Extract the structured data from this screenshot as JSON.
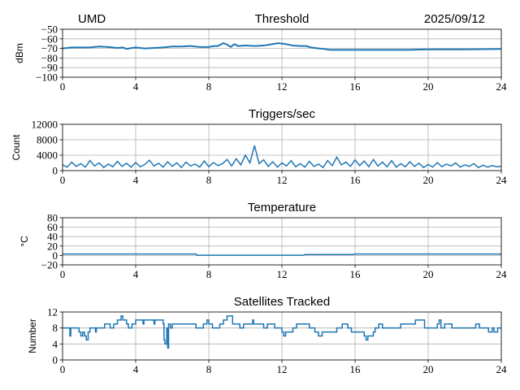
{
  "header": {
    "site": "UMD",
    "date": "2025/09/12"
  },
  "chart_data": [
    {
      "type": "line",
      "title": "Threshold",
      "ylabel": "dBm",
      "xlim": [
        0,
        24
      ],
      "ylim": [
        -100,
        -50
      ],
      "xticks": [
        "0",
        "4",
        "8",
        "12",
        "16",
        "20",
        "24"
      ],
      "yticks": [
        "−50",
        "−60",
        "−70",
        "−80",
        "−90",
        "−100"
      ],
      "grid": true,
      "color": "#1f77b4",
      "x": [
        0,
        0.5,
        1,
        1.5,
        2,
        2.5,
        3,
        3.3,
        3.5,
        3.8,
        4,
        4.5,
        5,
        5.5,
        6,
        6.5,
        7,
        7.5,
        8,
        8.3,
        8.5,
        8.8,
        9.0,
        9.2,
        9.4,
        9.6,
        10,
        10.5,
        11,
        11.5,
        11.8,
        12.2,
        12.6,
        13,
        13.3,
        13.6,
        14,
        14.3,
        14.6,
        15,
        16,
        17,
        18,
        19,
        20,
        21,
        22,
        23,
        24
      ],
      "y": [
        -70,
        -69,
        -69,
        -69,
        -68,
        -68.5,
        -69.5,
        -69,
        -70.5,
        -69.5,
        -69,
        -70,
        -69.5,
        -69,
        -68,
        -68,
        -67.5,
        -68.5,
        -68.5,
        -67.5,
        -67.5,
        -64.5,
        -66,
        -68.5,
        -65.5,
        -67.5,
        -67,
        -67.5,
        -67,
        -65.5,
        -64.5,
        -65.5,
        -67,
        -67.5,
        -67.5,
        -69,
        -70,
        -70.5,
        -71.5,
        -71.5,
        -71.5,
        -71.5,
        -71.5,
        -71.5,
        -71,
        -71,
        -71,
        -70.8,
        -70.5
      ]
    },
    {
      "type": "line",
      "title": "Triggers/sec",
      "ylabel": "Count",
      "xlim": [
        0,
        24
      ],
      "ylim": [
        0,
        12000
      ],
      "xticks": [
        "0",
        "4",
        "8",
        "12",
        "16",
        "20",
        "24"
      ],
      "yticks": [
        "12000",
        "8000",
        "4000",
        "0"
      ],
      "grid": true,
      "color": "#1f77b4",
      "x_step": 0.25,
      "y": [
        1500,
        900,
        2200,
        1100,
        1800,
        900,
        2600,
        1200,
        2000,
        800,
        1700,
        1000,
        2400,
        1100,
        1900,
        900,
        2100,
        1000,
        1600,
        2700,
        1200,
        1900,
        900,
        2300,
        1100,
        2000,
        800,
        2200,
        1200,
        1700,
        900,
        2500,
        1000,
        2100,
        1300,
        1800,
        2900,
        1200,
        3100,
        1500,
        4000,
        2000,
        6500,
        1800,
        2800,
        1100,
        2300,
        900,
        2000,
        1200,
        2600,
        1000,
        1800,
        900,
        2400,
        1100,
        1700,
        800,
        2600,
        1300,
        3500,
        1500,
        2200,
        1100,
        2800,
        1300,
        2500,
        1000,
        2900,
        1200,
        2200,
        1000,
        2600,
        900,
        1800,
        1000,
        2300,
        1100,
        1900,
        800,
        1600,
        900,
        2100,
        1000,
        1700,
        1200,
        2000,
        900,
        1500,
        1100,
        1800,
        800,
        1400,
        900,
        1300,
        1000,
        1100
      ]
    },
    {
      "type": "line",
      "title": "Temperature",
      "ylabel": "°C",
      "xlim": [
        0,
        24
      ],
      "ylim": [
        -20,
        80
      ],
      "xticks": [
        "0",
        "4",
        "8",
        "12",
        "16",
        "20",
        "24"
      ],
      "yticks": [
        "80",
        "60",
        "40",
        "20",
        "0",
        "−20"
      ],
      "grid": true,
      "color": "#1f77b4",
      "x": [
        0,
        7.3,
        7.35,
        13.2,
        13.25,
        15.9,
        15.95,
        24
      ],
      "y": [
        3,
        3,
        0.5,
        0.5,
        2,
        2,
        3,
        3
      ]
    },
    {
      "type": "line",
      "title": "Satellites Tracked",
      "ylabel": "Number",
      "xlim": [
        0,
        24
      ],
      "ylim": [
        0,
        12
      ],
      "xticks": [
        "0",
        "4",
        "8",
        "12",
        "16",
        "20",
        "24"
      ],
      "yticks": [
        "12",
        "8",
        "4",
        "0"
      ],
      "grid": true,
      "color": "#1f77b4",
      "step": true,
      "x": [
        0,
        0.4,
        0.45,
        0.9,
        1.0,
        1.1,
        1.2,
        1.3,
        1.4,
        1.5,
        1.8,
        1.85,
        2.3,
        2.6,
        2.8,
        3.0,
        3.2,
        3.3,
        3.5,
        3.6,
        3.8,
        4.0,
        4.4,
        4.45,
        5.0,
        5.05,
        5.5,
        5.55,
        5.6,
        5.7,
        5.75,
        5.8,
        5.9,
        6.0,
        7.3,
        7.7,
        7.9,
        8.0,
        8.2,
        8.6,
        8.8,
        9.0,
        9.3,
        9.7,
        9.9,
        10.4,
        10.45,
        11.0,
        11.2,
        11.6,
        12.0,
        12.1,
        12.2,
        12.6,
        12.8,
        13.5,
        13.8,
        14.0,
        14.2,
        15.0,
        15.3,
        15.6,
        15.8,
        16.5,
        16.6,
        16.7,
        17.0,
        17.1,
        17.3,
        17.5,
        18.5,
        19.3,
        19.8,
        20.5,
        20.6,
        20.7,
        20.9,
        21.3,
        22.6,
        22.8,
        23.3,
        23.5,
        23.6,
        23.8,
        24
      ],
      "y": [
        8,
        6,
        8,
        7,
        6,
        7,
        6,
        5,
        7,
        8,
        7,
        8,
        9,
        8,
        9,
        10,
        11,
        10,
        9,
        8,
        9,
        10,
        9,
        10,
        9,
        10,
        9,
        5,
        4,
        8,
        3,
        9,
        8,
        9,
        8,
        9,
        10,
        9,
        8,
        9,
        10,
        11,
        9,
        8,
        9,
        10,
        9,
        8,
        9,
        8,
        7,
        6,
        7,
        8,
        9,
        8,
        7,
        6,
        7,
        8,
        9,
        8,
        7,
        6,
        5,
        6,
        7,
        8,
        9,
        8,
        9,
        10,
        8,
        9,
        10,
        8,
        9,
        8,
        9,
        8,
        7,
        8,
        7,
        8,
        8
      ]
    }
  ]
}
